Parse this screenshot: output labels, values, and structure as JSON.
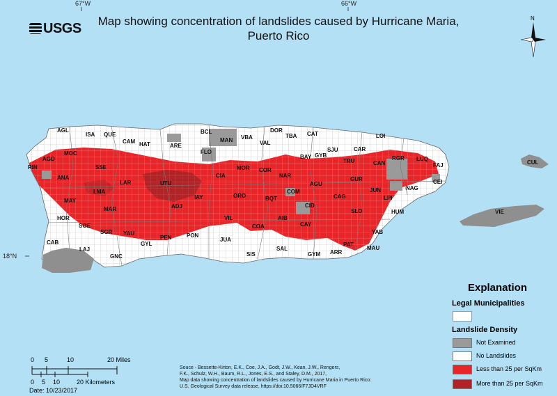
{
  "title": "Map showing concentration of landslides caused by Hurricane Maria, Puerto Rico",
  "logo_text": "USGS",
  "coords": {
    "lon1": "67°W",
    "lon2": "66°W",
    "lat1": "18°N"
  },
  "north_label": "N",
  "municipalities": [
    {
      "code": "AGL"
    },
    {
      "code": "ISA"
    },
    {
      "code": "QUE"
    },
    {
      "code": "CAM"
    },
    {
      "code": "HAT"
    },
    {
      "code": "ARE"
    },
    {
      "code": "BCL"
    },
    {
      "code": "MAN"
    },
    {
      "code": "VBA"
    },
    {
      "code": "DOR"
    },
    {
      "code": "TBA"
    },
    {
      "code": "CAT"
    },
    {
      "code": "LOI"
    },
    {
      "code": "RIN"
    },
    {
      "code": "AGD"
    },
    {
      "code": "MOC"
    },
    {
      "code": "SSE"
    },
    {
      "code": "FLO"
    },
    {
      "code": "VAL"
    },
    {
      "code": "SJU"
    },
    {
      "code": "CAR"
    },
    {
      "code": "GYB"
    },
    {
      "code": "BAY"
    },
    {
      "code": "TRU"
    },
    {
      "code": "CAN"
    },
    {
      "code": "RGR"
    },
    {
      "code": "LUQ"
    },
    {
      "code": "FAJ"
    },
    {
      "code": "CUL"
    },
    {
      "code": "MOR"
    },
    {
      "code": "COR"
    },
    {
      "code": "NAR"
    },
    {
      "code": "AGU"
    },
    {
      "code": "GUR"
    },
    {
      "code": "CEI"
    },
    {
      "code": "ANA"
    },
    {
      "code": "LAR"
    },
    {
      "code": "UTU"
    },
    {
      "code": "CIA"
    },
    {
      "code": "JUN"
    },
    {
      "code": "NAG"
    },
    {
      "code": "LMA"
    },
    {
      "code": "MAY"
    },
    {
      "code": "COM"
    },
    {
      "code": "LPI"
    },
    {
      "code": "IAY"
    },
    {
      "code": "ORO"
    },
    {
      "code": "BQT"
    },
    {
      "code": "CAG"
    },
    {
      "code": "ADJ"
    },
    {
      "code": "MAR"
    },
    {
      "code": "CID"
    },
    {
      "code": "HUM"
    },
    {
      "code": "HOR"
    },
    {
      "code": "SLO"
    },
    {
      "code": "VIE"
    },
    {
      "code": "SGE"
    },
    {
      "code": "VIL"
    },
    {
      "code": "AIB"
    },
    {
      "code": "SGR"
    },
    {
      "code": "YAU"
    },
    {
      "code": "COA"
    },
    {
      "code": "CAY"
    },
    {
      "code": "YAB"
    },
    {
      "code": "PEN"
    },
    {
      "code": "PON"
    },
    {
      "code": "CAB"
    },
    {
      "code": "GYL"
    },
    {
      "code": "JUA"
    },
    {
      "code": "PAT"
    },
    {
      "code": "MAU"
    },
    {
      "code": "LAJ"
    },
    {
      "code": "SAL"
    },
    {
      "code": "ARR"
    },
    {
      "code": "GNC"
    },
    {
      "code": "SIS"
    },
    {
      "code": "GYM"
    }
  ],
  "legend": {
    "title": "Explanation",
    "municipalities_title": "Legal Municipalities",
    "density_title": "Landslide Density",
    "items": [
      {
        "label": "Not Examined",
        "color": "#9a9a9a"
      },
      {
        "label": "No Landslides",
        "color": "#ffffff"
      },
      {
        "label": "Less than 25 per SqKm",
        "color": "#e8262a"
      },
      {
        "label": "More than 25 per SqKm",
        "color": "#b02427"
      }
    ]
  },
  "scale": {
    "miles_ticks": [
      "0",
      "5",
      "10",
      "20 Miles"
    ],
    "km_ticks": [
      "0",
      "5",
      "10",
      "20 Kilometers"
    ]
  },
  "date": "Date: 10/23/2017",
  "source_lines": [
    "Souce - Bessette-Kirton, E.K., Coe, J.A., Godt, J.W., Kean, J.W., Rengers,",
    "F.K., Schulz, W.H., Baum, R.L., Jones, E.S., and Staley, D.M., 2017,",
    "Map data showing concentration of landslides caused by Hurricane Maria in Puerto Rico:",
    "U.S. Geological Survey data release, https://doi:10.5066/F7JD4VRF"
  ]
}
